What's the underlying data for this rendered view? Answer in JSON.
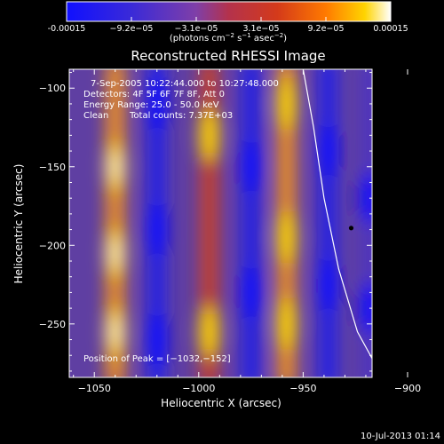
{
  "chart_data": {
    "type": "heatmap",
    "title": "Reconstructed RHESSI Image",
    "colorbar": {
      "min": -0.00015,
      "max": 0.00015,
      "tick_labels": [
        "-0.00015",
        "−9.2e−05",
        "−3.1e−05",
        "3.1e−05",
        "9.2e−05",
        "0.00015"
      ],
      "unit_line1": "(photons cm",
      "unit_sup1": "−2",
      "unit_mid1": " s",
      "unit_sup2": "−1",
      "unit_mid2": " asec",
      "unit_sup3": "−2",
      "unit_end": ")",
      "colors": [
        "#1010ff",
        "#3a2ad8",
        "#7f3fa8",
        "#ffffff",
        "#c8322e",
        "#ff7a00",
        "#ffd400",
        "#ffffff"
      ]
    },
    "xlabel": "Heliocentric X (arcsec)",
    "ylabel": "Heliocentric Y (arcsec)",
    "xlim": [
      -1062,
      -917
    ],
    "ylim": [
      -284,
      -88
    ],
    "x_ticks": [
      -1050,
      -1000,
      -950,
      -900
    ],
    "x_tick_labels": [
      "−1050",
      "−1000",
      "−950",
      "−900"
    ],
    "y_ticks": [
      -100,
      -150,
      -200,
      -250
    ],
    "y_tick_labels": [
      "−100",
      "−150",
      "−200",
      "−250"
    ],
    "info": {
      "line1": "7-Sep-2005 10:22:44.000 to 10:27:48.000",
      "line2": "Detectors: 4F 5F 6F 7F 8F, Att 0",
      "line3": "Energy Range: 25.0 - 50.0 keV",
      "line4": "Clean",
      "line4b": "Total counts: 7.37E+03",
      "peak_text": "Position of Peak = [−1032,−152]"
    },
    "peak": [
      -1032,
      -152
    ],
    "marker": [
      -927,
      -189
    ],
    "limb": {
      "points": [
        [
          -950,
          -88
        ],
        [
          -945,
          -125
        ],
        [
          -940,
          -170
        ],
        [
          -933,
          -215
        ],
        [
          -924,
          -255
        ],
        [
          -912,
          -284
        ]
      ]
    },
    "stripes": [
      {
        "x": -1040,
        "level": 0.62,
        "lobes": [
          -150,
          -205,
          -255
        ]
      },
      {
        "x": -1020,
        "level": -0.55,
        "lobes": [
          -110,
          -190,
          -260
        ]
      },
      {
        "x": -995,
        "level": 0.48,
        "lobes": [
          -130,
          -255
        ]
      },
      {
        "x": -975,
        "level": -0.5,
        "lobes": [
          -150,
          -230
        ]
      },
      {
        "x": -958,
        "level": 0.52,
        "lobes": [
          -110,
          -195,
          -250
        ]
      },
      {
        "x": -938,
        "level": -0.45,
        "lobes": [
          -140,
          -225
        ]
      },
      {
        "x": -918,
        "level": -0.35,
        "lobes": [
          -170,
          -240
        ]
      }
    ]
  },
  "footer": {
    "timestamp": "10-Jul-2013 01:14"
  }
}
